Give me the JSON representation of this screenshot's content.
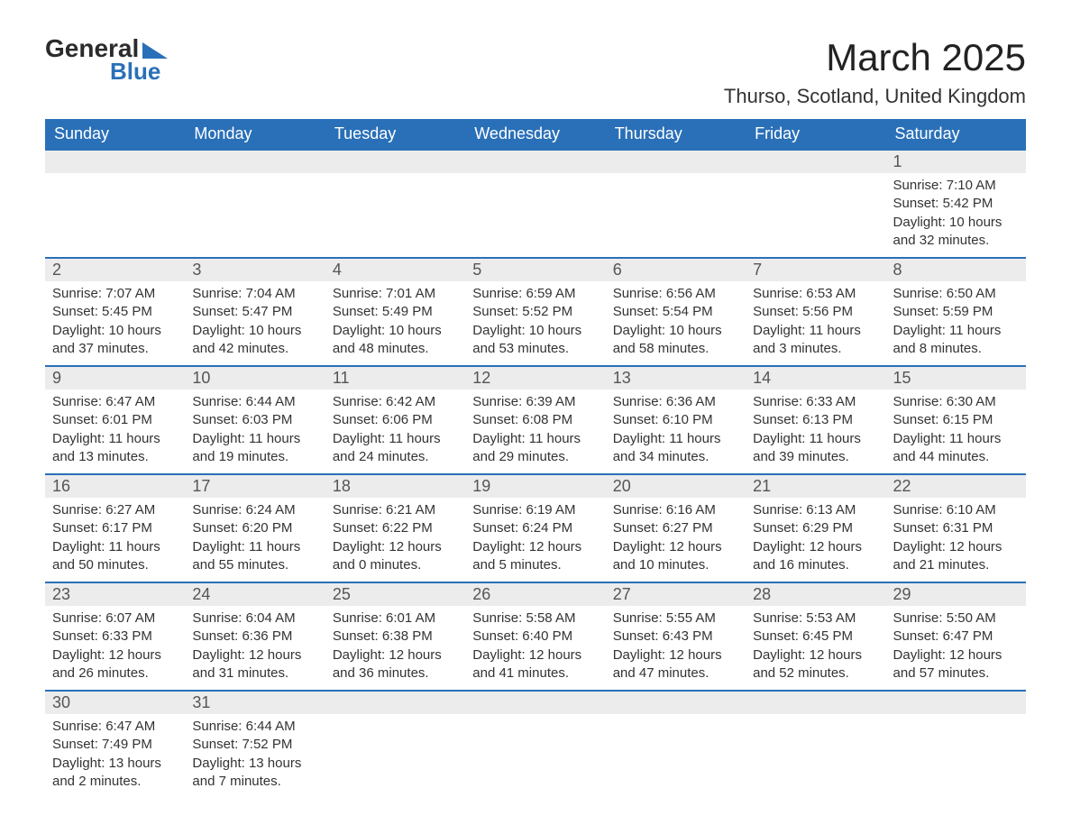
{
  "brand": {
    "name1": "General",
    "name2": "Blue"
  },
  "title": "March 2025",
  "location": "Thurso, Scotland, United Kingdom",
  "colors": {
    "header_bg": "#2a70b8",
    "header_text": "#ffffff",
    "daynum_bg": "#ececec",
    "row_border": "#2a70b8",
    "body_text": "#333333",
    "background": "#ffffff"
  },
  "typography": {
    "title_fontsize": 42,
    "location_fontsize": 22,
    "header_fontsize": 18,
    "daynum_fontsize": 18,
    "detail_fontsize": 15
  },
  "weekdays": [
    "Sunday",
    "Monday",
    "Tuesday",
    "Wednesday",
    "Thursday",
    "Friday",
    "Saturday"
  ],
  "weeks": [
    [
      null,
      null,
      null,
      null,
      null,
      null,
      {
        "n": "1",
        "sunrise": "7:10 AM",
        "sunset": "5:42 PM",
        "dl": "10 hours and 32 minutes."
      }
    ],
    [
      {
        "n": "2",
        "sunrise": "7:07 AM",
        "sunset": "5:45 PM",
        "dl": "10 hours and 37 minutes."
      },
      {
        "n": "3",
        "sunrise": "7:04 AM",
        "sunset": "5:47 PM",
        "dl": "10 hours and 42 minutes."
      },
      {
        "n": "4",
        "sunrise": "7:01 AM",
        "sunset": "5:49 PM",
        "dl": "10 hours and 48 minutes."
      },
      {
        "n": "5",
        "sunrise": "6:59 AM",
        "sunset": "5:52 PM",
        "dl": "10 hours and 53 minutes."
      },
      {
        "n": "6",
        "sunrise": "6:56 AM",
        "sunset": "5:54 PM",
        "dl": "10 hours and 58 minutes."
      },
      {
        "n": "7",
        "sunrise": "6:53 AM",
        "sunset": "5:56 PM",
        "dl": "11 hours and 3 minutes."
      },
      {
        "n": "8",
        "sunrise": "6:50 AM",
        "sunset": "5:59 PM",
        "dl": "11 hours and 8 minutes."
      }
    ],
    [
      {
        "n": "9",
        "sunrise": "6:47 AM",
        "sunset": "6:01 PM",
        "dl": "11 hours and 13 minutes."
      },
      {
        "n": "10",
        "sunrise": "6:44 AM",
        "sunset": "6:03 PM",
        "dl": "11 hours and 19 minutes."
      },
      {
        "n": "11",
        "sunrise": "6:42 AM",
        "sunset": "6:06 PM",
        "dl": "11 hours and 24 minutes."
      },
      {
        "n": "12",
        "sunrise": "6:39 AM",
        "sunset": "6:08 PM",
        "dl": "11 hours and 29 minutes."
      },
      {
        "n": "13",
        "sunrise": "6:36 AM",
        "sunset": "6:10 PM",
        "dl": "11 hours and 34 minutes."
      },
      {
        "n": "14",
        "sunrise": "6:33 AM",
        "sunset": "6:13 PM",
        "dl": "11 hours and 39 minutes."
      },
      {
        "n": "15",
        "sunrise": "6:30 AM",
        "sunset": "6:15 PM",
        "dl": "11 hours and 44 minutes."
      }
    ],
    [
      {
        "n": "16",
        "sunrise": "6:27 AM",
        "sunset": "6:17 PM",
        "dl": "11 hours and 50 minutes."
      },
      {
        "n": "17",
        "sunrise": "6:24 AM",
        "sunset": "6:20 PM",
        "dl": "11 hours and 55 minutes."
      },
      {
        "n": "18",
        "sunrise": "6:21 AM",
        "sunset": "6:22 PM",
        "dl": "12 hours and 0 minutes."
      },
      {
        "n": "19",
        "sunrise": "6:19 AM",
        "sunset": "6:24 PM",
        "dl": "12 hours and 5 minutes."
      },
      {
        "n": "20",
        "sunrise": "6:16 AM",
        "sunset": "6:27 PM",
        "dl": "12 hours and 10 minutes."
      },
      {
        "n": "21",
        "sunrise": "6:13 AM",
        "sunset": "6:29 PM",
        "dl": "12 hours and 16 minutes."
      },
      {
        "n": "22",
        "sunrise": "6:10 AM",
        "sunset": "6:31 PM",
        "dl": "12 hours and 21 minutes."
      }
    ],
    [
      {
        "n": "23",
        "sunrise": "6:07 AM",
        "sunset": "6:33 PM",
        "dl": "12 hours and 26 minutes."
      },
      {
        "n": "24",
        "sunrise": "6:04 AM",
        "sunset": "6:36 PM",
        "dl": "12 hours and 31 minutes."
      },
      {
        "n": "25",
        "sunrise": "6:01 AM",
        "sunset": "6:38 PM",
        "dl": "12 hours and 36 minutes."
      },
      {
        "n": "26",
        "sunrise": "5:58 AM",
        "sunset": "6:40 PM",
        "dl": "12 hours and 41 minutes."
      },
      {
        "n": "27",
        "sunrise": "5:55 AM",
        "sunset": "6:43 PM",
        "dl": "12 hours and 47 minutes."
      },
      {
        "n": "28",
        "sunrise": "5:53 AM",
        "sunset": "6:45 PM",
        "dl": "12 hours and 52 minutes."
      },
      {
        "n": "29",
        "sunrise": "5:50 AM",
        "sunset": "6:47 PM",
        "dl": "12 hours and 57 minutes."
      }
    ],
    [
      {
        "n": "30",
        "sunrise": "6:47 AM",
        "sunset": "7:49 PM",
        "dl": "13 hours and 2 minutes."
      },
      {
        "n": "31",
        "sunrise": "6:44 AM",
        "sunset": "7:52 PM",
        "dl": "13 hours and 7 minutes."
      },
      null,
      null,
      null,
      null,
      null
    ]
  ],
  "labels": {
    "sunrise": "Sunrise: ",
    "sunset": "Sunset: ",
    "daylight": "Daylight: "
  }
}
